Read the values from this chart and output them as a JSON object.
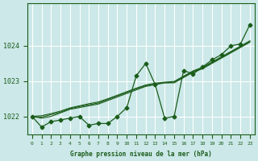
{
  "xlabel": "Graphe pression niveau de la mer (hPa)",
  "background_color": "#cce8e8",
  "grid_color": "#ffffff",
  "line_color": "#1a5c1a",
  "text_color": "#1a5c1a",
  "ylim": [
    1021.5,
    1025.2
  ],
  "xlim": [
    -0.5,
    23.5
  ],
  "yticks": [
    1022,
    1023,
    1024
  ],
  "xticks": [
    0,
    1,
    2,
    3,
    4,
    5,
    6,
    7,
    8,
    9,
    10,
    11,
    12,
    13,
    14,
    15,
    16,
    17,
    18,
    19,
    20,
    21,
    22,
    23
  ],
  "hours": [
    0,
    1,
    2,
    3,
    4,
    5,
    6,
    7,
    8,
    9,
    10,
    11,
    12,
    13,
    14,
    15,
    16,
    17,
    18,
    19,
    20,
    21,
    22,
    23
  ],
  "pressure_main": [
    1022.0,
    1021.7,
    1021.85,
    1021.9,
    1021.95,
    1022.0,
    1021.75,
    1021.8,
    1021.8,
    1022.0,
    1022.25,
    1023.15,
    1023.5,
    1022.9,
    1021.95,
    1022.0,
    1023.3,
    1023.2,
    1023.4,
    1023.6,
    1023.75,
    1024.0,
    1024.05,
    1024.6
  ],
  "pressure_smooth1": [
    1022.0,
    1021.95,
    1022.0,
    1022.1,
    1022.2,
    1022.25,
    1022.3,
    1022.35,
    1022.45,
    1022.55,
    1022.65,
    1022.75,
    1022.85,
    1022.9,
    1022.95,
    1022.95,
    1023.1,
    1023.25,
    1023.35,
    1023.5,
    1023.65,
    1023.8,
    1023.95,
    1024.1
  ],
  "pressure_smooth2": [
    1022.0,
    1021.98,
    1022.05,
    1022.12,
    1022.22,
    1022.28,
    1022.33,
    1022.38,
    1022.48,
    1022.58,
    1022.68,
    1022.78,
    1022.87,
    1022.92,
    1022.95,
    1022.97,
    1023.12,
    1023.27,
    1023.37,
    1023.52,
    1023.67,
    1023.82,
    1023.97,
    1024.12
  ],
  "pressure_smooth3": [
    1022.0,
    1022.02,
    1022.08,
    1022.15,
    1022.24,
    1022.3,
    1022.36,
    1022.41,
    1022.5,
    1022.6,
    1022.7,
    1022.8,
    1022.89,
    1022.94,
    1022.97,
    1022.99,
    1023.14,
    1023.29,
    1023.39,
    1023.54,
    1023.69,
    1023.84,
    1023.99,
    1024.14
  ]
}
